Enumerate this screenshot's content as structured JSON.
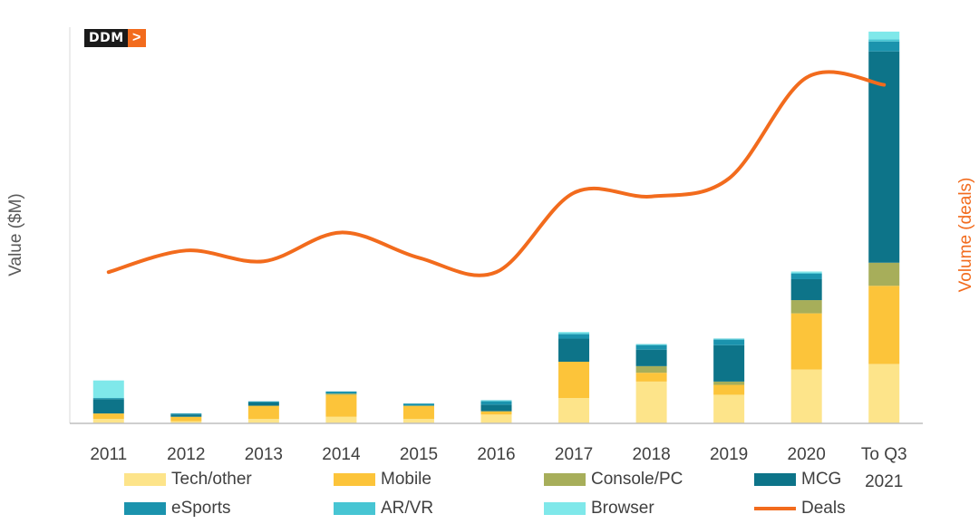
{
  "logo": {
    "text": "DDM",
    "arrow": ">"
  },
  "axis": {
    "left_title": "Value ($M)",
    "right_title": "Volume (deals)"
  },
  "chart_data": {
    "type": "bar",
    "stacked": true,
    "categories": [
      "2011",
      "2012",
      "2013",
      "2014",
      "2015",
      "2016",
      "2017",
      "2018",
      "2019",
      "2020",
      "To Q3 2021"
    ],
    "series": [
      {
        "name": "Tech/other",
        "color": "#fde48a",
        "values": [
          4,
          2,
          4,
          6,
          4,
          8,
          23,
          38,
          26,
          49,
          54
        ]
      },
      {
        "name": "Mobile",
        "color": "#fcc43a",
        "values": [
          5,
          4,
          12,
          20,
          12,
          3,
          33,
          8,
          9,
          51,
          71
        ]
      },
      {
        "name": "Console/PC",
        "color": "#a7ae5a",
        "values": [
          0,
          0,
          0,
          1,
          0,
          0,
          0,
          6,
          3,
          12,
          21
        ]
      },
      {
        "name": "MCG",
        "color": "#0d7489",
        "values": [
          13,
          2,
          3,
          0,
          0,
          6,
          21,
          15,
          33,
          19,
          192
        ]
      },
      {
        "name": "eSports",
        "color": "#1b93ad",
        "values": [
          1,
          1,
          1,
          2,
          2,
          3,
          4,
          4,
          5,
          5,
          9
        ]
      },
      {
        "name": "AR/VR",
        "color": "#47c5d3",
        "values": [
          0,
          0,
          0,
          0,
          0,
          1,
          1,
          1,
          1,
          1,
          2
        ]
      },
      {
        "name": "Browser",
        "color": "#7fe8ea",
        "values": [
          16,
          0,
          0,
          0,
          0,
          0,
          1,
          0,
          0,
          1,
          7
        ]
      }
    ],
    "line": {
      "name": "Deals",
      "color": "#f26b1d",
      "axis": "right",
      "values": [
        42,
        48,
        45,
        53,
        46,
        42,
        64,
        63,
        68,
        96,
        94
      ]
    },
    "ylim_left": [
      0,
      360
    ],
    "ylim_right": [
      0,
      110
    ],
    "legend": [
      {
        "name": "Tech/other",
        "kind": "box",
        "color": "#fde48a"
      },
      {
        "name": "Mobile",
        "kind": "box",
        "color": "#fcc43a"
      },
      {
        "name": "Console/PC",
        "kind": "box",
        "color": "#a7ae5a"
      },
      {
        "name": "MCG",
        "kind": "box",
        "color": "#0d7489"
      },
      {
        "name": "eSports",
        "kind": "box",
        "color": "#1b93ad"
      },
      {
        "name": "AR/VR",
        "kind": "box",
        "color": "#47c5d3"
      },
      {
        "name": "Browser",
        "kind": "box",
        "color": "#7fe8ea"
      },
      {
        "name": "Deals",
        "kind": "line",
        "color": "#f26b1d"
      }
    ],
    "legend_position": "bottom",
    "grid": false
  }
}
